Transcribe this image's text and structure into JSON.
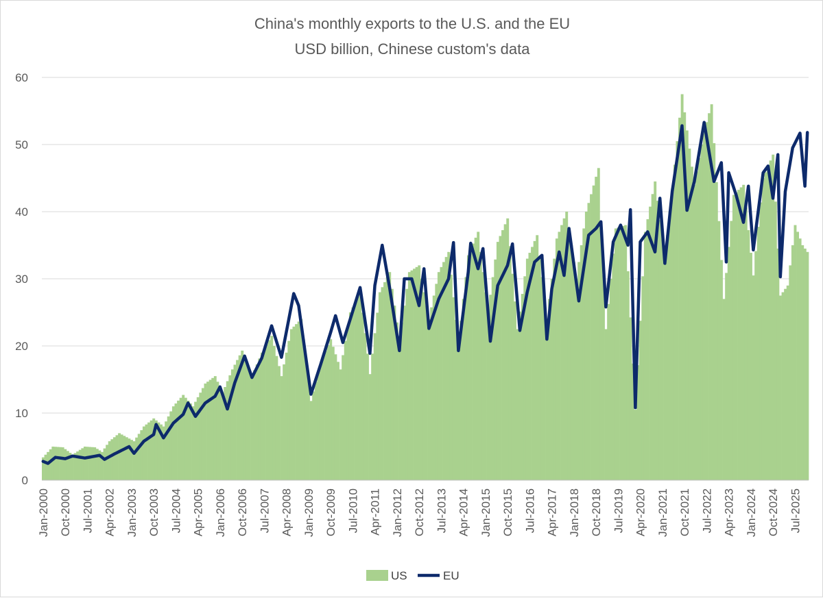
{
  "chart_data": {
    "type": "bar",
    "title": "China's monthly exports to the U.S. and the EU",
    "subtitle": "USD billion, Chinese custom's data",
    "xlabel": "",
    "ylabel": "",
    "ylim": [
      0,
      60
    ],
    "y_ticks": [
      "0",
      "10",
      "20",
      "30",
      "40",
      "50",
      "60"
    ],
    "x_start": "2000-01",
    "x_end": "2025-12",
    "x_tick_labels": [
      "Jan-2000",
      "Oct-2000",
      "Jul-2001",
      "Apr-2002",
      "Jan-2003",
      "Oct-2003",
      "Jul-2004",
      "Apr-2005",
      "Jan-2006",
      "Oct-2006",
      "Jul-2007",
      "Apr-2008",
      "Jan-2009",
      "Oct-2009",
      "Jul-2010",
      "Apr-2011",
      "Jan-2012",
      "Oct-2012",
      "Jul-2013",
      "Apr-2014",
      "Jan-2015",
      "Oct-2015",
      "Jul-2016",
      "Apr-2017",
      "Jan-2018",
      "Oct-2018",
      "Jul-2019",
      "Apr-2020",
      "Jan-2021",
      "Oct-2021",
      "Jul-2022",
      "Apr-2023",
      "Jan-2024",
      "Oct-2024",
      "Jul-2025"
    ],
    "grid": "horizontal",
    "legend_position": "bottom",
    "colors": {
      "US": "#a9d18e",
      "EU": "#0d2a6b"
    },
    "series": [
      {
        "name": "US",
        "kind": "bar",
        "anchors": [
          [
            "2000-01",
            3.4
          ],
          [
            "2000-05",
            5.0
          ],
          [
            "2000-09",
            4.9
          ],
          [
            "2001-01",
            3.8
          ],
          [
            "2001-06",
            5.0
          ],
          [
            "2001-10",
            4.9
          ],
          [
            "2002-01",
            4.2
          ],
          [
            "2002-04",
            5.8
          ],
          [
            "2002-08",
            7.0
          ],
          [
            "2002-12",
            6.2
          ],
          [
            "2003-02",
            5.8
          ],
          [
            "2003-06",
            8.0
          ],
          [
            "2003-10",
            9.2
          ],
          [
            "2004-02",
            8.0
          ],
          [
            "2004-06",
            11.0
          ],
          [
            "2004-10",
            12.7
          ],
          [
            "2005-02",
            11.0
          ],
          [
            "2005-07",
            14.4
          ],
          [
            "2005-11",
            15.5
          ],
          [
            "2006-02",
            13.0
          ],
          [
            "2006-06",
            16.5
          ],
          [
            "2006-10",
            19.3
          ],
          [
            "2007-02",
            15.5
          ],
          [
            "2007-06",
            19.0
          ],
          [
            "2007-10",
            21.5
          ],
          [
            "2008-02",
            15.5
          ],
          [
            "2008-06",
            22.5
          ],
          [
            "2008-10",
            24.0
          ],
          [
            "2009-02",
            11.8
          ],
          [
            "2009-06",
            17.5
          ],
          [
            "2009-10",
            21.0
          ],
          [
            "2010-02",
            16.5
          ],
          [
            "2010-06",
            25.0
          ],
          [
            "2010-10",
            28.0
          ],
          [
            "2011-02",
            15.8
          ],
          [
            "2011-06",
            28.0
          ],
          [
            "2011-10",
            31.0
          ],
          [
            "2012-02",
            21.0
          ],
          [
            "2012-06",
            31.0
          ],
          [
            "2012-10",
            32.0
          ],
          [
            "2013-02",
            24.0
          ],
          [
            "2013-06",
            31.0
          ],
          [
            "2013-10",
            34.0
          ],
          [
            "2014-02",
            20.5
          ],
          [
            "2014-06",
            33.5
          ],
          [
            "2014-10",
            37.0
          ],
          [
            "2015-02",
            25.0
          ],
          [
            "2015-06",
            35.5
          ],
          [
            "2015-10",
            39.0
          ],
          [
            "2016-02",
            22.5
          ],
          [
            "2016-06",
            33.0
          ],
          [
            "2016-10",
            36.5
          ],
          [
            "2017-02",
            24.0
          ],
          [
            "2017-06",
            36.0
          ],
          [
            "2017-10",
            40.0
          ],
          [
            "2018-02",
            30.0
          ],
          [
            "2018-06",
            40.0
          ],
          [
            "2018-11",
            46.5
          ],
          [
            "2019-02",
            22.5
          ],
          [
            "2019-06",
            37.5
          ],
          [
            "2019-10",
            38.0
          ],
          [
            "2020-02",
            10.5
          ],
          [
            "2020-06",
            37.0
          ],
          [
            "2020-10",
            44.5
          ],
          [
            "2021-02",
            33.0
          ],
          [
            "2021-06",
            47.0
          ],
          [
            "2021-09",
            57.5
          ],
          [
            "2022-02",
            44.0
          ],
          [
            "2022-06",
            52.0
          ],
          [
            "2022-09",
            56.0
          ],
          [
            "2023-02",
            27.0
          ],
          [
            "2023-06",
            42.5
          ],
          [
            "2023-10",
            44.0
          ],
          [
            "2024-02",
            30.5
          ],
          [
            "2024-06",
            45.0
          ],
          [
            "2024-10",
            48.5
          ],
          [
            "2025-01",
            27.5
          ],
          [
            "2025-04",
            29.0
          ],
          [
            "2025-07",
            38.0
          ],
          [
            "2025-10",
            35.0
          ],
          [
            "2025-12",
            34.0
          ]
        ]
      },
      {
        "name": "EU",
        "kind": "line",
        "anchors": [
          [
            "2000-01",
            2.8
          ],
          [
            "2000-03",
            2.5
          ],
          [
            "2000-06",
            3.4
          ],
          [
            "2000-10",
            3.2
          ],
          [
            "2001-01",
            3.6
          ],
          [
            "2001-06",
            3.3
          ],
          [
            "2001-12",
            3.7
          ],
          [
            "2002-02",
            3.1
          ],
          [
            "2002-06",
            3.9
          ],
          [
            "2002-12",
            5.0
          ],
          [
            "2003-02",
            4.0
          ],
          [
            "2003-06",
            5.8
          ],
          [
            "2003-10",
            6.8
          ],
          [
            "2003-11",
            8.3
          ],
          [
            "2004-02",
            6.3
          ],
          [
            "2004-06",
            8.5
          ],
          [
            "2004-10",
            9.8
          ],
          [
            "2004-12",
            11.5
          ],
          [
            "2005-03",
            9.5
          ],
          [
            "2005-07",
            11.5
          ],
          [
            "2005-11",
            12.5
          ],
          [
            "2006-01",
            13.9
          ],
          [
            "2006-04",
            10.6
          ],
          [
            "2006-07",
            14.5
          ],
          [
            "2006-11",
            18.5
          ],
          [
            "2007-02",
            15.3
          ],
          [
            "2007-06",
            18.2
          ],
          [
            "2007-10",
            23.0
          ],
          [
            "2008-02",
            18.3
          ],
          [
            "2008-07",
            27.8
          ],
          [
            "2008-09",
            26.0
          ],
          [
            "2009-02",
            12.8
          ],
          [
            "2009-06",
            17.3
          ],
          [
            "2009-10",
            22.0
          ],
          [
            "2009-12",
            24.5
          ],
          [
            "2010-03",
            20.5
          ],
          [
            "2010-06",
            24.0
          ],
          [
            "2010-10",
            28.7
          ],
          [
            "2011-02",
            18.9
          ],
          [
            "2011-04",
            29.0
          ],
          [
            "2011-07",
            35.0
          ],
          [
            "2011-10",
            28.7
          ],
          [
            "2012-02",
            19.3
          ],
          [
            "2012-04",
            30.0
          ],
          [
            "2012-07",
            30.0
          ],
          [
            "2012-10",
            26.0
          ],
          [
            "2012-12",
            31.5
          ],
          [
            "2013-02",
            22.6
          ],
          [
            "2013-06",
            27.0
          ],
          [
            "2013-10",
            30.0
          ],
          [
            "2013-12",
            35.4
          ],
          [
            "2014-02",
            19.3
          ],
          [
            "2014-06",
            31.0
          ],
          [
            "2014-07",
            35.3
          ],
          [
            "2014-10",
            31.5
          ],
          [
            "2014-12",
            34.5
          ],
          [
            "2015-03",
            20.7
          ],
          [
            "2015-06",
            29.0
          ],
          [
            "2015-10",
            32.0
          ],
          [
            "2015-12",
            35.2
          ],
          [
            "2016-03",
            22.3
          ],
          [
            "2016-06",
            28.0
          ],
          [
            "2016-09",
            32.5
          ],
          [
            "2016-12",
            33.5
          ],
          [
            "2017-02",
            21.0
          ],
          [
            "2017-04",
            28.5
          ],
          [
            "2017-07",
            34.0
          ],
          [
            "2017-09",
            30.5
          ],
          [
            "2017-11",
            37.5
          ],
          [
            "2018-03",
            26.7
          ],
          [
            "2018-07",
            36.5
          ],
          [
            "2018-10",
            37.5
          ],
          [
            "2018-12",
            38.5
          ],
          [
            "2019-02",
            25.8
          ],
          [
            "2019-05",
            35.5
          ],
          [
            "2019-08",
            38.0
          ],
          [
            "2019-11",
            35.0
          ],
          [
            "2019-12",
            40.3
          ],
          [
            "2020-02",
            10.8
          ],
          [
            "2020-04",
            35.5
          ],
          [
            "2020-07",
            37.0
          ],
          [
            "2020-10",
            34.0
          ],
          [
            "2020-12",
            42.0
          ],
          [
            "2021-02",
            32.3
          ],
          [
            "2021-05",
            43.0
          ],
          [
            "2021-09",
            52.8
          ],
          [
            "2021-11",
            40.2
          ],
          [
            "2022-02",
            44.5
          ],
          [
            "2022-06",
            53.3
          ],
          [
            "2022-10",
            44.5
          ],
          [
            "2023-01",
            47.3
          ],
          [
            "2023-03",
            32.5
          ],
          [
            "2023-04",
            45.8
          ],
          [
            "2023-07",
            42.5
          ],
          [
            "2023-10",
            38.4
          ],
          [
            "2023-12",
            43.8
          ],
          [
            "2024-02",
            34.3
          ],
          [
            "2024-06",
            45.8
          ],
          [
            "2024-08",
            46.8
          ],
          [
            "2024-10",
            42.0
          ],
          [
            "2024-12",
            48.5
          ],
          [
            "2025-01",
            30.3
          ],
          [
            "2025-03",
            43.0
          ],
          [
            "2025-06",
            49.5
          ],
          [
            "2025-09",
            51.7
          ],
          [
            "2025-11",
            43.8
          ],
          [
            "2025-12",
            51.8
          ]
        ]
      }
    ]
  }
}
